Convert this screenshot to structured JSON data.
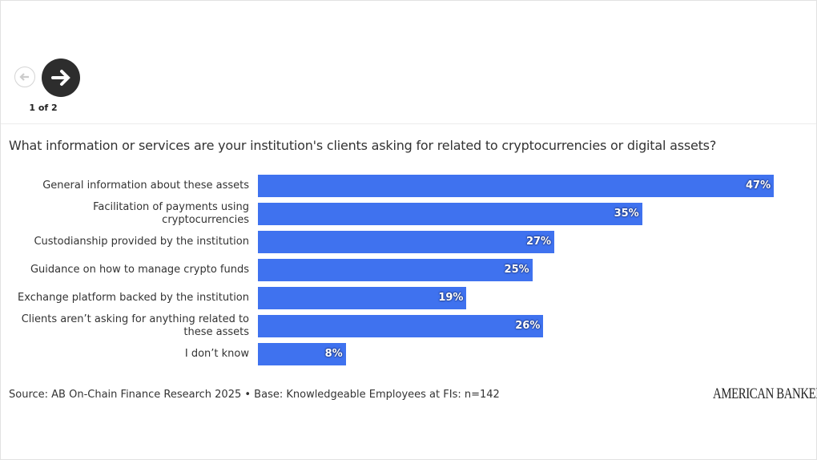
{
  "nav": {
    "page_label": "1 of 2"
  },
  "chart_data": {
    "type": "bar",
    "orientation": "horizontal",
    "title": "What information or services are your institution's clients asking for related to cryptocurrencies or digital assets?",
    "categories": [
      "General information about these assets",
      "Facilitation of payments using cryptocurrencies",
      "Custodianship provided by the institution",
      "Guidance on how to manage crypto funds",
      "Exchange platform backed by the institution",
      "Clients aren’t asking for anything related to these assets",
      "I don’t know"
    ],
    "values": [
      47,
      35,
      27,
      25,
      19,
      26,
      8
    ],
    "value_labels": [
      "47%",
      "35%",
      "27%",
      "25%",
      "19%",
      "26%",
      "8%"
    ],
    "color": "#3f72ef",
    "source": "Source: AB On-Chain Finance Research 2025 • Base: Knowledgeable Employees at FIs: n=142"
  },
  "logo": "AMERICAN BANKER"
}
